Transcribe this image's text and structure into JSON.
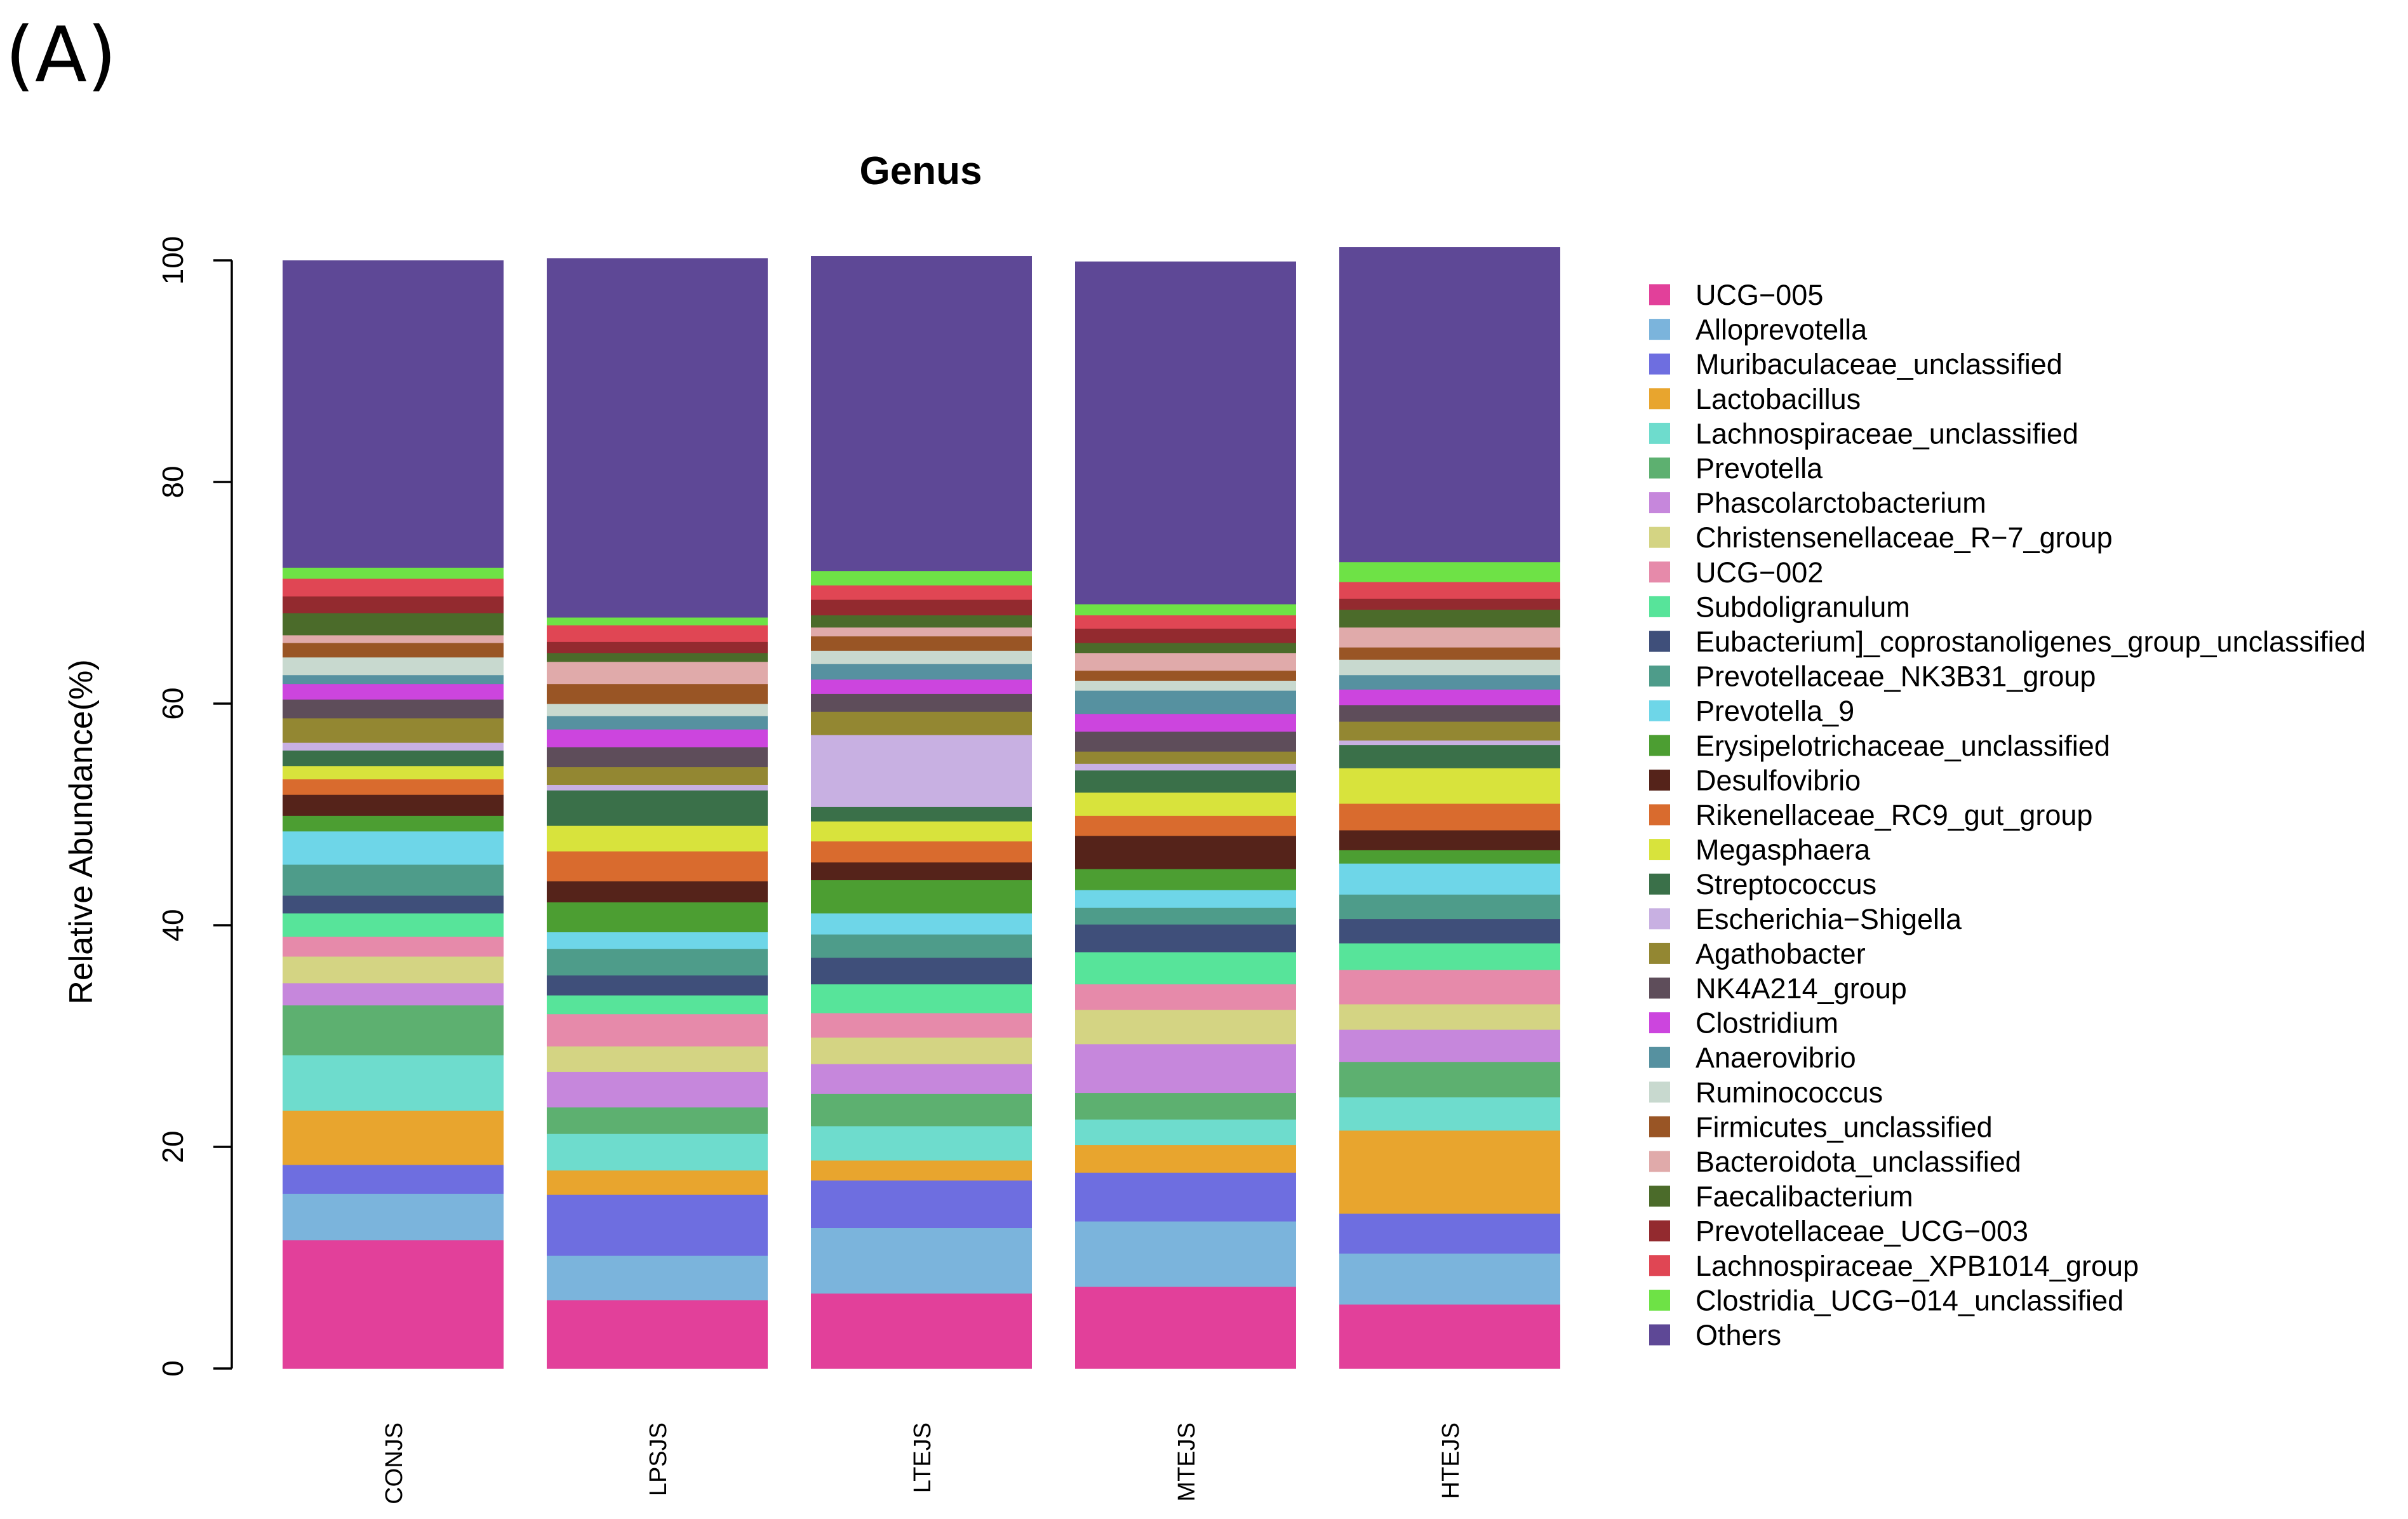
{
  "panel_label": "(A)",
  "chart_data": {
    "type": "bar",
    "stacked": true,
    "title": "Genus",
    "xlabel": "",
    "ylabel": "Relative Abundance(%)",
    "ylim": [
      0,
      100
    ],
    "yticks": [
      "0",
      "20",
      "40",
      "60",
      "80",
      "100"
    ],
    "grid": false,
    "legend_position": "right",
    "categories": [
      "CONJS",
      "LPSJS",
      "LTEJS",
      "MTEJS",
      "HTEJS"
    ],
    "series": [
      {
        "name": "UCG−005",
        "color": "#E2409A",
        "values": [
          11.6,
          6.2,
          6.8,
          7.4,
          5.8
        ]
      },
      {
        "name": "Alloprevotella",
        "color": "#7BB4DC",
        "values": [
          4.2,
          4.0,
          5.9,
          5.9,
          4.6
        ]
      },
      {
        "name": "Muribaculaceae_unclassified",
        "color": "#6E6EE0",
        "values": [
          2.6,
          5.5,
          4.3,
          4.4,
          3.6
        ]
      },
      {
        "name": "Lactobacillus",
        "color": "#E8A52E",
        "values": [
          4.9,
          2.2,
          1.8,
          2.5,
          7.5
        ]
      },
      {
        "name": "Lachnospiraceae_unclassified",
        "color": "#6EDCCD",
        "values": [
          5.0,
          3.3,
          3.1,
          2.3,
          3.0
        ]
      },
      {
        "name": "Prevotella",
        "color": "#5DB070",
        "values": [
          4.5,
          2.4,
          2.9,
          2.4,
          3.2
        ]
      },
      {
        "name": "Phascolarctobacterium",
        "color": "#C687DC",
        "values": [
          2.0,
          3.2,
          2.7,
          4.4,
          2.9
        ]
      },
      {
        "name": "Christensenellaceae_R−7_group",
        "color": "#D4D483",
        "values": [
          2.4,
          2.3,
          2.4,
          3.1,
          2.3
        ]
      },
      {
        "name": "UCG−002",
        "color": "#E68AAA",
        "values": [
          1.8,
          2.9,
          2.2,
          2.3,
          3.1
        ]
      },
      {
        "name": "Subdoligranulum",
        "color": "#57E49A",
        "values": [
          2.1,
          1.7,
          2.6,
          2.9,
          2.4
        ]
      },
      {
        "name": "Eubacterium]_coprostanoligenes_group_unclassified",
        "color": "#3F4F7A",
        "values": [
          1.6,
          1.8,
          2.4,
          2.5,
          2.2
        ]
      },
      {
        "name": "Prevotellaceae_NK3B31_group",
        "color": "#4E9C8A",
        "values": [
          2.8,
          2.4,
          2.1,
          1.5,
          2.2
        ]
      },
      {
        "name": "Prevotella_9",
        "color": "#6ED6E8",
        "values": [
          3.0,
          1.5,
          1.9,
          1.6,
          2.8
        ]
      },
      {
        "name": "Erysipelotrichaceae_unclassified",
        "color": "#4C9E32",
        "values": [
          1.4,
          2.7,
          3.0,
          1.9,
          1.2
        ]
      },
      {
        "name": "Desulfovibrio",
        "color": "#55231A",
        "values": [
          1.9,
          1.9,
          1.6,
          3.0,
          1.8
        ]
      },
      {
        "name": "Rikenellaceae_RC9_gut_group",
        "color": "#D96B2E",
        "values": [
          1.4,
          2.7,
          1.9,
          1.8,
          2.4
        ]
      },
      {
        "name": "Megasphaera",
        "color": "#D8E33C",
        "values": [
          1.2,
          2.3,
          1.8,
          2.1,
          3.2
        ]
      },
      {
        "name": "Streptococcus",
        "color": "#3A7049",
        "values": [
          1.4,
          3.2,
          1.3,
          2.0,
          2.1
        ]
      },
      {
        "name": "Escherichia−Shigella",
        "color": "#C8B0E2",
        "values": [
          0.7,
          0.5,
          6.5,
          0.6,
          0.4
        ]
      },
      {
        "name": "Agathobacter",
        "color": "#938732",
        "values": [
          2.2,
          1.6,
          2.1,
          1.1,
          1.7
        ]
      },
      {
        "name": "NK4A214_group",
        "color": "#5E4D5A",
        "values": [
          1.7,
          1.8,
          1.6,
          1.8,
          1.5
        ]
      },
      {
        "name": "Clostridium",
        "color": "#CC45DE",
        "values": [
          1.4,
          1.6,
          1.3,
          1.6,
          1.4
        ]
      },
      {
        "name": "Anaerovibrio",
        "color": "#5691A0",
        "values": [
          0.8,
          1.2,
          1.4,
          2.1,
          1.3
        ]
      },
      {
        "name": "Ruminococcus",
        "color": "#C8D9CF",
        "values": [
          1.6,
          1.1,
          1.2,
          0.9,
          1.4
        ]
      },
      {
        "name": "Firmicutes_unclassified",
        "color": "#995525",
        "values": [
          1.3,
          1.8,
          1.3,
          0.9,
          1.1
        ]
      },
      {
        "name": "Bacteroidota_unclassified",
        "color": "#E0AAAA",
        "values": [
          0.7,
          2.0,
          0.8,
          1.6,
          1.8
        ]
      },
      {
        "name": "Faecalibacterium",
        "color": "#4B6B2A",
        "values": [
          2.0,
          0.8,
          1.1,
          0.9,
          1.6
        ]
      },
      {
        "name": "Prevotellaceae_UCG−003",
        "color": "#932A2F",
        "values": [
          1.5,
          1.0,
          1.4,
          1.3,
          1.0
        ]
      },
      {
        "name": "Lachnospiraceae_XPB1014_group",
        "color": "#E04654",
        "values": [
          1.6,
          1.5,
          1.3,
          1.2,
          1.5
        ]
      },
      {
        "name": "Clostridia_UCG−014_unclassified",
        "color": "#6EE246",
        "values": [
          1.0,
          0.7,
          1.3,
          1.0,
          1.8
        ]
      },
      {
        "name": "Others",
        "color": "#5E4896",
        "values": [
          27.7,
          32.4,
          28.4,
          30.9,
          28.4
        ]
      }
    ]
  }
}
